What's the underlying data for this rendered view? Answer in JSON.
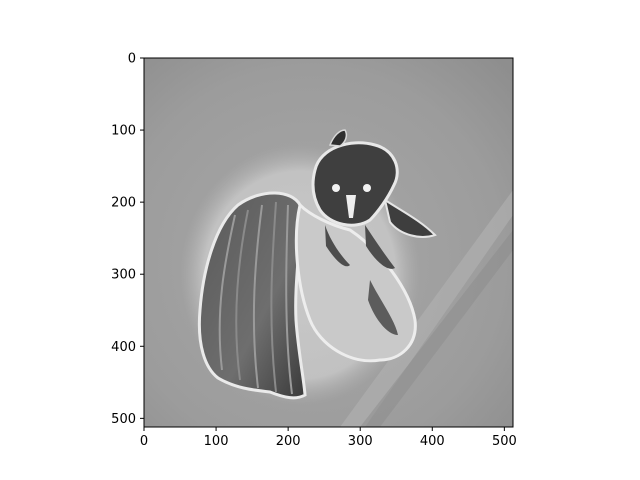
{
  "chart_data": {
    "type": "heatmap",
    "title": "",
    "xlabel": "",
    "ylabel": "",
    "colormap": "gray",
    "image_shape": [
      512,
      512
    ],
    "xlim": [
      0,
      512
    ],
    "ylim": [
      512,
      0
    ],
    "x_ticks": [
      "0",
      "100",
      "200",
      "300",
      "400",
      "500"
    ],
    "y_ticks": [
      "0",
      "100",
      "200",
      "300",
      "400",
      "500"
    ],
    "subject": "grayscale image of an insect (bee-like) with a folded wing",
    "grid": false,
    "legend": "none"
  }
}
